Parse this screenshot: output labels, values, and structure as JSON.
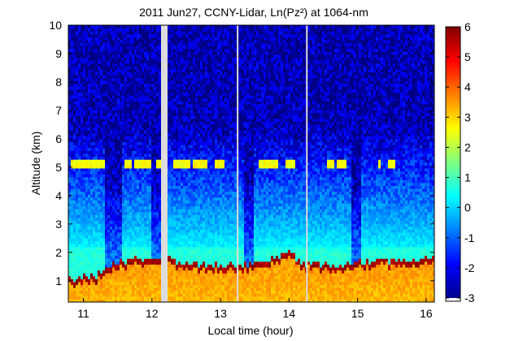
{
  "chart_data": {
    "type": "heatmap",
    "title": "2011 Jun27, CCNY-Lidar, Ln(Pz²) at 1064-nm",
    "xlabel": "Local time (hour)",
    "ylabel": "Altitude (km)",
    "xlim": [
      10.78,
      16.12
    ],
    "ylim": [
      0.25,
      10
    ],
    "xticks": [
      "11",
      "12",
      "13",
      "14",
      "15",
      "16"
    ],
    "xtick_values": [
      11,
      12,
      13,
      14,
      15,
      16
    ],
    "yticks": [
      "1",
      "2",
      "3",
      "4",
      "5",
      "6",
      "7",
      "8",
      "9",
      "10"
    ],
    "ytick_values": [
      1,
      2,
      3,
      4,
      5,
      6,
      7,
      8,
      9,
      10
    ],
    "colorbar": {
      "range": [
        -3,
        6
      ],
      "ticks": [
        "-3",
        "-2",
        "-1",
        "0",
        "1",
        "2",
        "3",
        "4",
        "5",
        "6"
      ],
      "tick_values": [
        -3,
        -2,
        -1,
        0,
        1,
        2,
        3,
        4,
        5,
        6
      ],
      "colormap": "jet"
    },
    "data_gaps_hour": [
      12.18,
      13.25,
      14.26
    ],
    "features": {
      "boundary_layer_top_km": [
        [
          10.8,
          1.0
        ],
        [
          11.0,
          1.05
        ],
        [
          11.2,
          1.1
        ],
        [
          11.35,
          1.35
        ],
        [
          11.6,
          1.6
        ],
        [
          11.9,
          1.75
        ],
        [
          12.15,
          1.8
        ],
        [
          12.3,
          1.65
        ],
        [
          12.6,
          1.5
        ],
        [
          12.9,
          1.5
        ],
        [
          13.2,
          1.45
        ],
        [
          13.5,
          1.6
        ],
        [
          13.8,
          1.75
        ],
        [
          14.0,
          1.95
        ],
        [
          14.2,
          1.55
        ],
        [
          14.5,
          1.5
        ],
        [
          14.8,
          1.55
        ],
        [
          15.1,
          1.6
        ],
        [
          15.4,
          1.65
        ],
        [
          15.7,
          1.65
        ],
        [
          16.0,
          1.7
        ],
        [
          16.12,
          1.72
        ]
      ],
      "elevated_layer_km": 5.15,
      "elevated_layer_segments_hour": [
        [
          10.8,
          11.3
        ],
        [
          11.6,
          11.7
        ],
        [
          11.75,
          12.0
        ],
        [
          12.05,
          12.15
        ],
        [
          12.3,
          12.55
        ],
        [
          12.6,
          12.8
        ],
        [
          12.9,
          13.05
        ],
        [
          13.55,
          13.85
        ],
        [
          13.95,
          14.1
        ],
        [
          14.55,
          14.65
        ],
        [
          14.7,
          14.85
        ],
        [
          15.3,
          15.35
        ],
        [
          15.45,
          15.55
        ]
      ]
    },
    "colors": {
      "background_value": -2.6,
      "aerosol_value": 0.4,
      "boundary_layer_value": 3.6,
      "boundary_top_value": 6,
      "gap_color": "#dcdcdc"
    }
  }
}
